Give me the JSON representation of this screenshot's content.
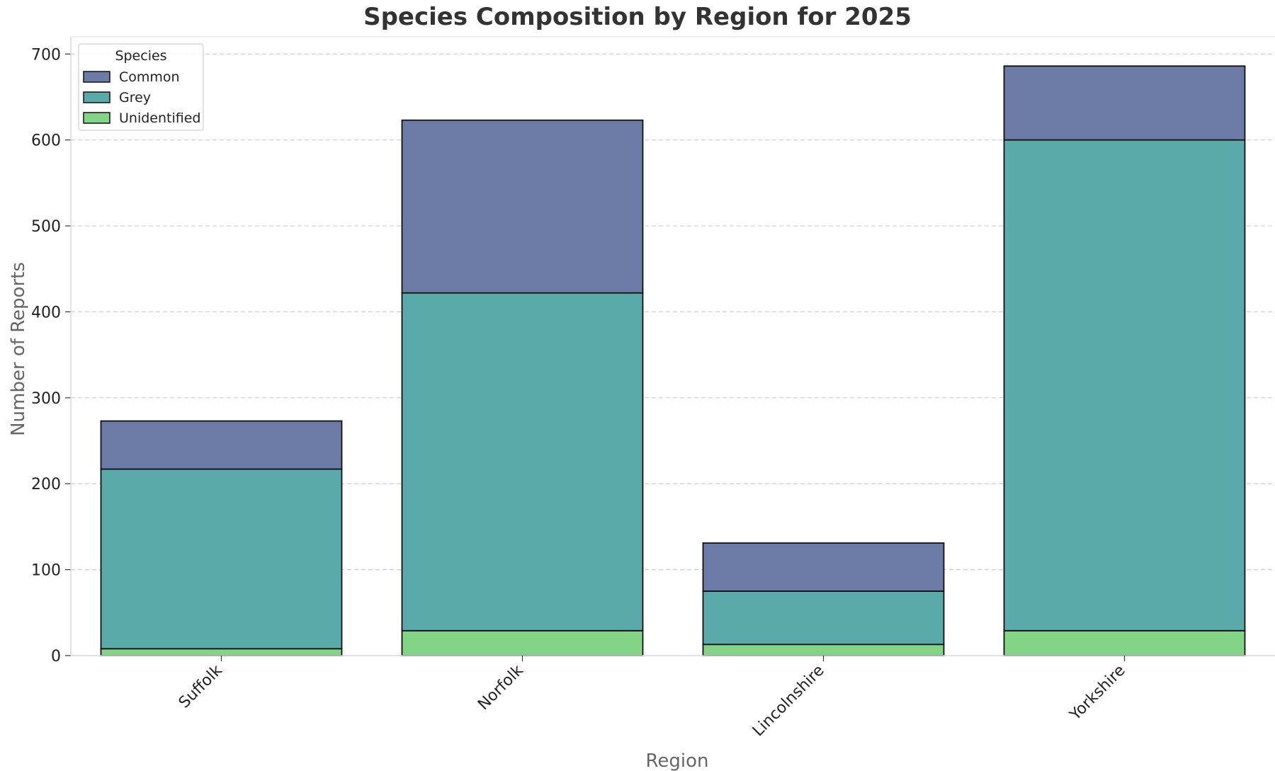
{
  "chart_data": {
    "type": "bar",
    "stacked": true,
    "title": "Species Composition by Region for 2025",
    "xlabel": "Region",
    "ylabel": "Number of Reports",
    "categories": [
      "Suffolk",
      "Norfolk",
      "Lincolnshire",
      "Yorkshire"
    ],
    "series": [
      {
        "name": "Unidentified",
        "values": [
          8,
          29,
          13,
          29
        ],
        "color": "#84d488"
      },
      {
        "name": "Grey",
        "values": [
          209,
          393,
          62,
          571
        ],
        "color": "#5aaaaa"
      },
      {
        "name": "Common",
        "values": [
          56,
          201,
          56,
          86
        ],
        "color": "#6b7ba5"
      }
    ],
    "yticks": [
      0,
      100,
      200,
      300,
      400,
      500,
      600,
      700
    ],
    "ylim": [
      0,
      720
    ],
    "grid": true,
    "grid_axis": "y",
    "legend": {
      "title": "Species",
      "placement": "top-left",
      "order": [
        "Common",
        "Grey",
        "Unidentified"
      ]
    }
  }
}
